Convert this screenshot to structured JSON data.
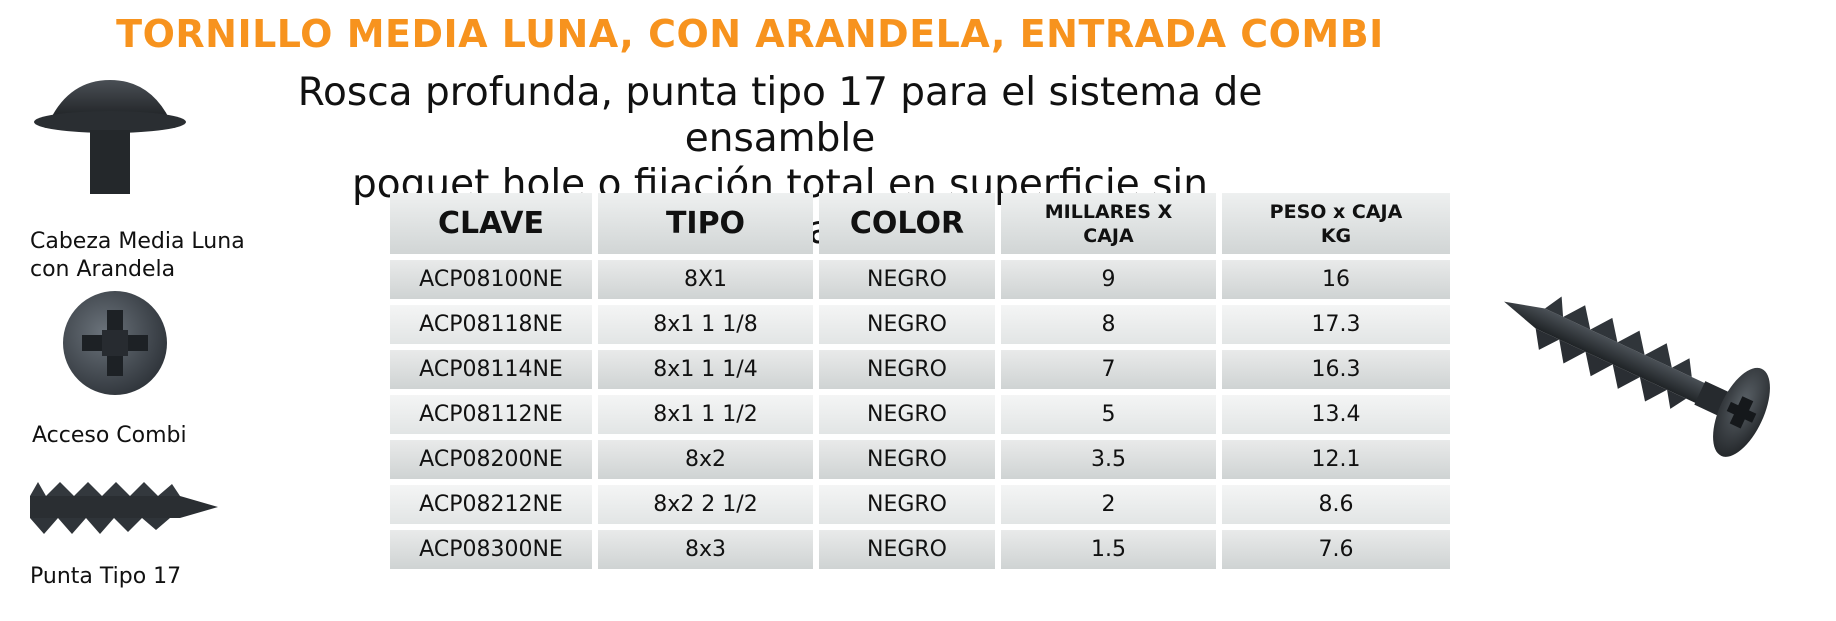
{
  "header": {
    "title": "TORNILLO MEDIA LUNA, CON ARANDELA, ENTRADA COMBI",
    "subtitle_line1": "Rosca profunda, punta tipo 17 para el sistema de ensamble",
    "subtitle_line2": "poquet hole o fijación total en superficie sin avellanado."
  },
  "sidebar": {
    "head_label_line1": "Cabeza Media Luna",
    "head_label_line2": "con Arandela",
    "access_label": "Acceso Combi",
    "tip_label": "Punta Tipo 17"
  },
  "table": {
    "columns": [
      "CLAVE",
      "TIPO",
      "COLOR",
      "MILLARES X",
      "CAJA",
      "PESO x CAJA",
      "KG"
    ],
    "rows": [
      [
        "ACP08100NE",
        "8X1",
        "NEGRO",
        "9",
        "16"
      ],
      [
        "ACP08118NE",
        "8x1 1 1/8",
        "NEGRO",
        "8",
        "17.3"
      ],
      [
        "ACP08114NE",
        "8x1 1 1/4",
        "NEGRO",
        "7",
        "16.3"
      ],
      [
        "ACP08112NE",
        "8x1 1 1/2",
        "NEGRO",
        "5",
        "13.4"
      ],
      [
        "ACP08200NE",
        "8x2",
        "NEGRO",
        "3.5",
        "12.1"
      ],
      [
        "ACP08212NE",
        "8x2 2 1/2",
        "NEGRO",
        "2",
        "8.6"
      ],
      [
        "ACP08300NE",
        "8x3",
        "NEGRO",
        "1.5",
        "7.6"
      ]
    ]
  },
  "colors": {
    "title": "#f7931e",
    "cell_bg": "#d4d8d8",
    "screw": "#2b2f33"
  },
  "icons": [
    "screw-head-side-icon",
    "combi-head-top-icon",
    "screw-tip-icon",
    "screw-full-icon"
  ]
}
